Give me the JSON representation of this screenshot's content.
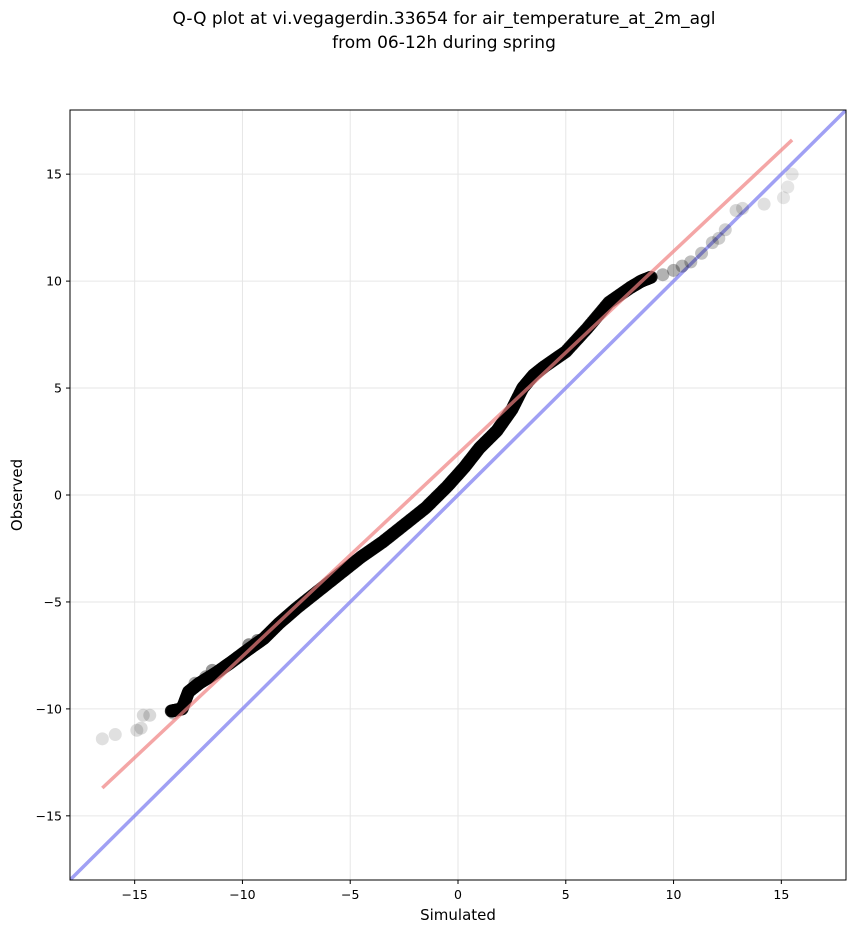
{
  "chart_data": {
    "type": "scatter",
    "title_lines": [
      "Q-Q plot at vi.vegagerdin.33654 for air_temperature_at_2m_agl",
      "from 06-12h during spring"
    ],
    "xlabel": "Simulated",
    "ylabel": "Observed",
    "xlim": [
      -18,
      18
    ],
    "ylim": [
      -18,
      18
    ],
    "xticks": [
      -15,
      -10,
      -5,
      0,
      5,
      10,
      15
    ],
    "yticks": [
      -15,
      -10,
      -5,
      0,
      5,
      10,
      15
    ],
    "xtick_labels": [
      "−15",
      "−10",
      "−5",
      "0",
      "5",
      "10",
      "15"
    ],
    "ytick_labels": [
      "−15",
      "−10",
      "−5",
      "0",
      "5",
      "10",
      "15"
    ],
    "grid": true,
    "colors": {
      "points": "#000000",
      "fit_line": "#f08080",
      "identity_line": "#8080f0",
      "grid": "#e6e6e6"
    },
    "quantile_curve": {
      "x": [
        -13.3,
        -12.8,
        -12.5,
        -12.0,
        -11.2,
        -10.5,
        -9.7,
        -9.0,
        -8.3,
        -7.5,
        -6.5,
        -5.5,
        -4.5,
        -3.5,
        -2.5,
        -1.5,
        -0.5,
        0.3,
        1.0,
        1.8,
        2.5,
        3.0,
        3.5,
        4.0,
        5.0,
        6.0,
        7.0,
        8.0,
        8.5,
        9.0
      ],
      "y": [
        -10.1,
        -10.0,
        -9.2,
        -8.8,
        -8.3,
        -7.8,
        -7.2,
        -6.7,
        -6.0,
        -5.3,
        -4.5,
        -3.7,
        -2.9,
        -2.2,
        -1.4,
        -0.6,
        0.4,
        1.3,
        2.2,
        3.0,
        4.0,
        5.0,
        5.6,
        6.0,
        6.7,
        7.8,
        9.0,
        9.7,
        10.0,
        10.2
      ],
      "opacity": 0.85
    },
    "tail_points": {
      "x": [
        -16.5,
        -15.9,
        -14.9,
        -14.7,
        -14.6,
        -14.3,
        -13.2,
        -12.8,
        -12.2,
        -11.7,
        -11.4,
        -9.7,
        -9.3,
        9.5,
        10.0,
        10.4,
        10.8,
        11.3,
        11.8,
        12.1,
        12.4,
        12.9,
        13.2,
        14.2,
        15.1,
        15.3,
        15.5
      ],
      "y": [
        -11.4,
        -11.2,
        -11.0,
        -10.9,
        -10.3,
        -10.3,
        -10.2,
        -9.9,
        -8.8,
        -8.5,
        -8.2,
        -7.0,
        -6.8,
        10.3,
        10.5,
        10.7,
        10.9,
        11.3,
        11.8,
        12.0,
        12.4,
        13.3,
        13.4,
        13.6,
        13.9,
        14.4,
        15.0
      ],
      "opacity": [
        0.12,
        0.12,
        0.14,
        0.14,
        0.15,
        0.15,
        0.25,
        0.3,
        0.35,
        0.35,
        0.4,
        0.45,
        0.45,
        0.3,
        0.3,
        0.28,
        0.26,
        0.24,
        0.22,
        0.2,
        0.18,
        0.16,
        0.14,
        0.12,
        0.1,
        0.1,
        0.1
      ]
    },
    "fit_line": {
      "x": [
        -16.5,
        15.5
      ],
      "y": [
        -13.7,
        16.6
      ]
    },
    "identity_line": {
      "x": [
        -18,
        18
      ],
      "y": [
        -18,
        18
      ]
    }
  }
}
